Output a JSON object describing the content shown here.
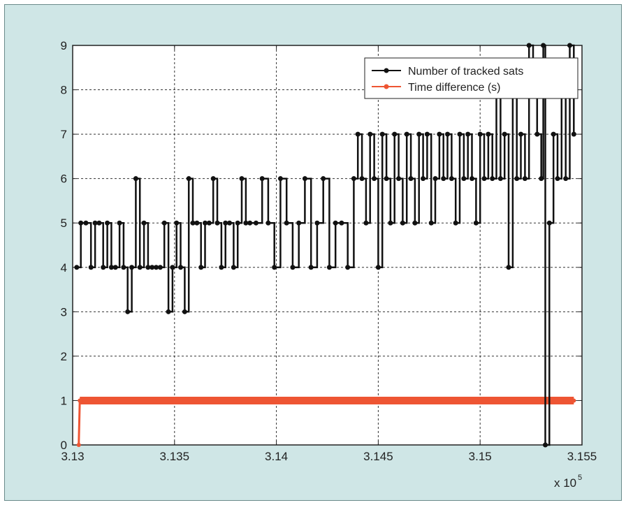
{
  "chart_data": {
    "type": "line",
    "title": "",
    "xlabel": "",
    "ylabel": "",
    "x_multiplier_label": "x 10",
    "x_multiplier_exp": "5",
    "xlim": [
      313000,
      315500
    ],
    "ylim": [
      0,
      9
    ],
    "x_ticks": [
      313000,
      313500,
      314000,
      314500,
      315000,
      315500
    ],
    "x_tick_labels": [
      "3.13",
      "3.135",
      "3.14",
      "3.145",
      "3.15",
      "3.155"
    ],
    "y_ticks": [
      0,
      1,
      2,
      3,
      4,
      5,
      6,
      7,
      8,
      9
    ],
    "y_tick_labels": [
      "0",
      "1",
      "2",
      "3",
      "4",
      "5",
      "6",
      "7",
      "8",
      "9"
    ],
    "grid": true,
    "legend_position": "top-right",
    "series": [
      {
        "name": "Number of tracked sats",
        "color": "#111111",
        "marker": "dot",
        "x": [
          313020,
          313040,
          313065,
          313090,
          313110,
          313130,
          313150,
          313170,
          313190,
          313210,
          313230,
          313250,
          313270,
          313290,
          313310,
          313330,
          313350,
          313370,
          313390,
          313410,
          313430,
          313450,
          313470,
          313490,
          313510,
          313530,
          313550,
          313570,
          313590,
          313610,
          313630,
          313650,
          313670,
          313690,
          313710,
          313730,
          313750,
          313770,
          313790,
          313810,
          313830,
          313850,
          313870,
          313900,
          313930,
          313960,
          313990,
          314020,
          314050,
          314080,
          314110,
          314140,
          314170,
          314200,
          314230,
          314260,
          314290,
          314320,
          314350,
          314380,
          314400,
          314420,
          314440,
          314460,
          314480,
          314500,
          314520,
          314540,
          314560,
          314580,
          314600,
          314620,
          314640,
          314660,
          314680,
          314700,
          314720,
          314740,
          314760,
          314780,
          314800,
          314820,
          314840,
          314860,
          314880,
          314900,
          314920,
          314940,
          314960,
          314980,
          315000,
          315020,
          315040,
          315060,
          315080,
          315100,
          315120,
          315140,
          315160,
          315180,
          315200,
          315220,
          315240,
          315260,
          315280,
          315300,
          315310,
          315320,
          315340,
          315360,
          315380,
          315400,
          315420,
          315440,
          315460
        ],
        "values": [
          4,
          5,
          5,
          4,
          5,
          5,
          4,
          5,
          4,
          4,
          5,
          4,
          3,
          4,
          6,
          4,
          5,
          4,
          4,
          4,
          4,
          5,
          3,
          4,
          5,
          4,
          3,
          6,
          5,
          5,
          4,
          5,
          5,
          6,
          5,
          4,
          5,
          5,
          4,
          5,
          6,
          5,
          5,
          5,
          6,
          5,
          4,
          6,
          5,
          4,
          5,
          6,
          4,
          5,
          6,
          4,
          5,
          5,
          4,
          6,
          7,
          6,
          5,
          7,
          6,
          4,
          7,
          6,
          5,
          7,
          6,
          5,
          7,
          6,
          5,
          7,
          6,
          7,
          5,
          6,
          7,
          6,
          7,
          6,
          5,
          7,
          6,
          7,
          6,
          5,
          7,
          6,
          7,
          6,
          8,
          6,
          7,
          4,
          8,
          6,
          7,
          6,
          9,
          8,
          7,
          6,
          9,
          0,
          5,
          7,
          6,
          8,
          6,
          9,
          7
        ],
        "x_note": "x values in data units"
      },
      {
        "name": "Time difference (s)",
        "color": "#ee5533",
        "marker": "dot",
        "x": [
          313030,
          313035,
          313040,
          313200,
          313400,
          313600,
          313800,
          314000,
          314200,
          314400,
          314600,
          314800,
          315000,
          315200,
          315400,
          315460
        ],
        "values": [
          0,
          1,
          1,
          1,
          1,
          1,
          1,
          1,
          1,
          1,
          1,
          1,
          1,
          1,
          1,
          1
        ]
      }
    ]
  }
}
